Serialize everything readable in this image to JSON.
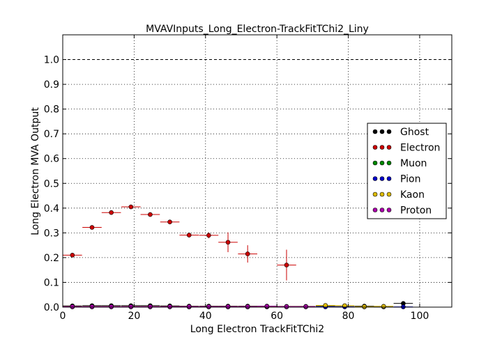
{
  "chart_data": {
    "type": "scatter",
    "title": "MVAVInputs_Long_Electron-TrackFitTChi2_Liny",
    "xlabel": "Long Electron TrackFitTChi2",
    "ylabel": "Long Electron MVA Output",
    "xlim": [
      0,
      109
    ],
    "ylim": [
      0,
      1.1
    ],
    "x_ticks": [
      "0",
      "20",
      "40",
      "60",
      "80",
      "100"
    ],
    "y_ticks": [
      "0.0",
      "0.1",
      "0.2",
      "0.3",
      "0.4",
      "0.5",
      "0.6",
      "0.7",
      "0.8",
      "0.9",
      "1.0"
    ],
    "reference_line_y": 1.0,
    "grid": true,
    "legend_position": "right",
    "series": [
      {
        "name": "Ghost",
        "color": "#000000",
        "x": [
          2.7,
          8.2,
          13.6,
          19.1,
          24.5,
          30.0,
          35.4,
          40.9,
          46.3,
          51.8,
          57.2,
          62.7,
          68.1,
          73.6,
          79.0,
          84.5,
          89.9,
          95.4
        ],
        "y": [
          0.005,
          0.006,
          0.006,
          0.006,
          0.006,
          0.005,
          0.004,
          0.004,
          0.004,
          0.004,
          0.004,
          0.003,
          0.003,
          0.005,
          0.005,
          0.004,
          0.003,
          0.015
        ],
        "xerr": 2.7,
        "yerr": [
          0.001,
          0.001,
          0.001,
          0.001,
          0.001,
          0.001,
          0.001,
          0.001,
          0.001,
          0.001,
          0.001,
          0.001,
          0.001,
          0.002,
          0.002,
          0.002,
          0.002,
          0.008
        ]
      },
      {
        "name": "Electron",
        "color": "#cc0000",
        "x": [
          2.7,
          8.2,
          13.6,
          19.1,
          24.5,
          30.0,
          35.4,
          40.9,
          46.3,
          51.8,
          62.7
        ],
        "y": [
          0.21,
          0.322,
          0.382,
          0.405,
          0.374,
          0.344,
          0.291,
          0.29,
          0.262,
          0.215,
          0.17
        ],
        "xerr": 2.7,
        "yerr": [
          0.005,
          0.006,
          0.006,
          0.007,
          0.007,
          0.008,
          0.01,
          0.012,
          0.04,
          0.035,
          0.062
        ]
      },
      {
        "name": "Muon",
        "color": "#008800",
        "x": [
          2.7,
          8.2,
          13.6,
          19.1,
          24.5,
          30.0,
          35.4,
          40.9,
          46.3,
          51.8
        ],
        "y": [
          0.002,
          0.002,
          0.002,
          0.002,
          0.002,
          0.002,
          0.001,
          0.001,
          0.001,
          0.001
        ],
        "xerr": 2.7,
        "yerr": [
          0.001,
          0.001,
          0.001,
          0.001,
          0.001,
          0.001,
          0.001,
          0.001,
          0.001,
          0.001
        ]
      },
      {
        "name": "Pion",
        "color": "#0000cc",
        "x": [
          2.7,
          8.2,
          13.6,
          19.1,
          24.5,
          30.0,
          35.4,
          40.9,
          46.3,
          51.8,
          57.2,
          62.7,
          68.1,
          73.6,
          79.0,
          84.5,
          89.9,
          95.4
        ],
        "y": [
          0.001,
          0.001,
          0.001,
          0.001,
          0.001,
          0.001,
          0.001,
          0.001,
          0.001,
          0.001,
          0.001,
          0.001,
          0.001,
          0.001,
          0.001,
          0.001,
          0.001,
          0.001
        ],
        "xerr": 2.7,
        "yerr": [
          0.001,
          0.001,
          0.001,
          0.001,
          0.001,
          0.001,
          0.001,
          0.001,
          0.001,
          0.001,
          0.001,
          0.001,
          0.001,
          0.001,
          0.001,
          0.001,
          0.001,
          0.001
        ]
      },
      {
        "name": "Kaon",
        "color": "#ddbb00",
        "x": [
          2.7,
          8.2,
          13.6,
          19.1,
          24.5,
          30.0,
          35.4,
          40.9,
          46.3,
          51.8,
          57.2,
          62.7,
          68.1,
          73.6,
          79.0,
          84.5,
          89.9
        ],
        "y": [
          0.002,
          0.002,
          0.002,
          0.002,
          0.002,
          0.002,
          0.002,
          0.002,
          0.002,
          0.002,
          0.002,
          0.002,
          0.002,
          0.007,
          0.006,
          0.002,
          0.003
        ],
        "xerr": 2.7,
        "yerr": [
          0.001,
          0.001,
          0.001,
          0.001,
          0.001,
          0.001,
          0.001,
          0.001,
          0.001,
          0.001,
          0.001,
          0.001,
          0.001,
          0.003,
          0.003,
          0.001,
          0.001
        ]
      },
      {
        "name": "Proton",
        "color": "#aa00aa",
        "x": [
          2.7,
          8.2,
          13.6,
          19.1,
          24.5,
          30.0,
          35.4,
          40.9,
          46.3,
          51.8,
          57.2,
          62.7,
          68.1
        ],
        "y": [
          0.002,
          0.002,
          0.002,
          0.002,
          0.002,
          0.002,
          0.002,
          0.002,
          0.002,
          0.002,
          0.003,
          0.002,
          0.002
        ],
        "xerr": 2.7,
        "yerr": [
          0.001,
          0.001,
          0.001,
          0.001,
          0.001,
          0.001,
          0.001,
          0.001,
          0.001,
          0.001,
          0.001,
          0.001,
          0.001
        ]
      }
    ]
  }
}
